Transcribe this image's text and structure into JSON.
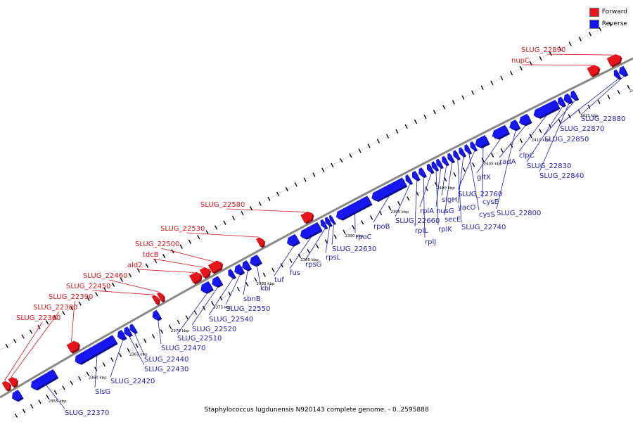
{
  "colors": {
    "forward": "#e8161b",
    "reverse": "#1717f2",
    "label_forward": "#d2121a",
    "label_reverse": "#1f1fb3",
    "axis": "#888888"
  },
  "legend": [
    {
      "label": "Forward",
      "color": "#e8161b"
    },
    {
      "label": "Reverse",
      "color": "#1717f2"
    }
  ],
  "caption": "Staphylococcus lugdunensis N920143 complete genome. - 0..2595888",
  "scale_labels": [
    {
      "pos": 2355,
      "label": "2355 kbp"
    },
    {
      "pos": 2360,
      "label": "2360 kbp"
    },
    {
      "pos": 2365,
      "label": "2365 kbp"
    },
    {
      "pos": 2370,
      "label": "2370 kbp"
    },
    {
      "pos": 2375,
      "label": "2375 kbp"
    },
    {
      "pos": 2380,
      "label": "2380 kbp"
    },
    {
      "pos": 2385,
      "label": "2385 kbp"
    },
    {
      "pos": 2390,
      "label": "2390 kbp"
    },
    {
      "pos": 2395,
      "label": "2395 kbp"
    },
    {
      "pos": 2400,
      "label": "2400 kbp"
    },
    {
      "pos": 2405,
      "label": "2405 kbp"
    },
    {
      "pos": 2410,
      "label": "2410 kbp"
    },
    {
      "pos": 2415,
      "label": "2415 kbp"
    },
    {
      "pos": 2420,
      "label": "2420 kbp"
    }
  ],
  "forward_genes": [
    {
      "start": 2351.5,
      "end": 2352.2,
      "name": "SLUG_22360"
    },
    {
      "start": 2352.3,
      "end": 2353.1,
      "name": "SLUG_22380"
    },
    {
      "start": 2359.6,
      "end": 2360.8,
      "name": "SLUG_22390"
    },
    {
      "start": 2369.9,
      "end": 2370.4,
      "name": "SLUG_22450"
    },
    {
      "start": 2370.5,
      "end": 2371.0,
      "name": "SLUG_22460"
    },
    {
      "start": 2374.3,
      "end": 2375.4,
      "name": "ald2"
    },
    {
      "start": 2375.5,
      "end": 2376.4,
      "name": "tdcB"
    },
    {
      "start": 2376.5,
      "end": 2377.8,
      "name": "SLUG_22500"
    },
    {
      "start": 2382.0,
      "end": 2382.6,
      "name": "SLUG_22530"
    },
    {
      "start": 2387.0,
      "end": 2388.1,
      "name": "SLUG_22580"
    },
    {
      "start": 2417.4,
      "end": 2418.4,
      "name": "nupC"
    },
    {
      "start": 2419.4,
      "end": 2420.6,
      "name": "SLUG_22890"
    }
  ],
  "reverse_genes": [
    {
      "start": 2351.6,
      "end": 2352.6,
      "name": ""
    },
    {
      "start": 2354.0,
      "end": 2357.0,
      "name": "SLUG_22370"
    },
    {
      "start": 2359.5,
      "end": 2364.3,
      "name": "SlsG"
    },
    {
      "start": 2364.7,
      "end": 2365.4,
      "name": "SLUG_22420"
    },
    {
      "start": 2365.5,
      "end": 2366.1,
      "name": "SLUG_22430"
    },
    {
      "start": 2366.2,
      "end": 2366.7,
      "name": "SLUG_22440"
    },
    {
      "start": 2368.9,
      "end": 2369.6,
      "name": "SLUG_22470"
    },
    {
      "start": 2374.6,
      "end": 2375.7,
      "name": "SLUG_22510"
    },
    {
      "start": 2375.9,
      "end": 2376.8,
      "name": "SLUG_22520"
    },
    {
      "start": 2377.8,
      "end": 2378.3,
      "name": "SLUG_22540"
    },
    {
      "start": 2378.5,
      "end": 2379.3,
      "name": "SLUG_22550"
    },
    {
      "start": 2379.4,
      "end": 2380.1,
      "name": "sbnB"
    },
    {
      "start": 2380.3,
      "end": 2381.3,
      "name": "kbl"
    },
    {
      "start": 2384.5,
      "end": 2385.6,
      "name": "tuf"
    },
    {
      "start": 2386.0,
      "end": 2388.1,
      "name": "fus"
    },
    {
      "start": 2388.3,
      "end": 2388.7,
      "name": "rpsG"
    },
    {
      "start": 2388.8,
      "end": 2389.2,
      "name": "rpsL"
    },
    {
      "start": 2389.3,
      "end": 2389.6,
      "name": "SLUG_22630"
    },
    {
      "start": 2390.0,
      "end": 2393.6,
      "name": "rpoC"
    },
    {
      "start": 2393.9,
      "end": 2397.4,
      "name": "rpoB"
    },
    {
      "start": 2397.6,
      "end": 2398.0,
      "name": "SLUG_22660"
    },
    {
      "start": 2398.3,
      "end": 2398.8,
      "name": "rplL"
    },
    {
      "start": 2399.0,
      "end": 2399.5,
      "name": "rplJ"
    },
    {
      "start": 2399.9,
      "end": 2400.3,
      "name": "rplA"
    },
    {
      "start": 2400.4,
      "end": 2400.8,
      "name": "rplK"
    },
    {
      "start": 2400.9,
      "end": 2401.3,
      "name": "nusG"
    },
    {
      "start": 2401.5,
      "end": 2401.9,
      "name": "sigH"
    },
    {
      "start": 2402.1,
      "end": 2402.5,
      "name": "secE"
    },
    {
      "start": 2402.7,
      "end": 2403.1,
      "name": "SLUG_22740"
    },
    {
      "start": 2403.3,
      "end": 2403.7,
      "name": "yacO"
    },
    {
      "start": 2403.9,
      "end": 2404.3,
      "name": "cysS"
    },
    {
      "start": 2404.5,
      "end": 2404.9,
      "name": "SLUG_22760"
    },
    {
      "start": 2405.0,
      "end": 2406.2,
      "name": "cysE"
    },
    {
      "start": 2406.8,
      "end": 2408.3,
      "name": "gltX"
    },
    {
      "start": 2408.6,
      "end": 2409.4,
      "name": "SLUG_22800"
    },
    {
      "start": 2409.6,
      "end": 2410.6,
      "name": "radA"
    },
    {
      "start": 2411.1,
      "end": 2413.5,
      "name": "clpC"
    },
    {
      "start": 2413.6,
      "end": 2414.1,
      "name": "SLUG_22830"
    },
    {
      "start": 2414.2,
      "end": 2414.8,
      "name": "SLUG_22840"
    },
    {
      "start": 2414.9,
      "end": 2415.4,
      "name": "SLUG_22850"
    },
    {
      "start": 2419.3,
      "end": 2419.7,
      "name": "SLUG_22870"
    },
    {
      "start": 2419.8,
      "end": 2420.4,
      "name": "SLUG_22880"
    }
  ]
}
